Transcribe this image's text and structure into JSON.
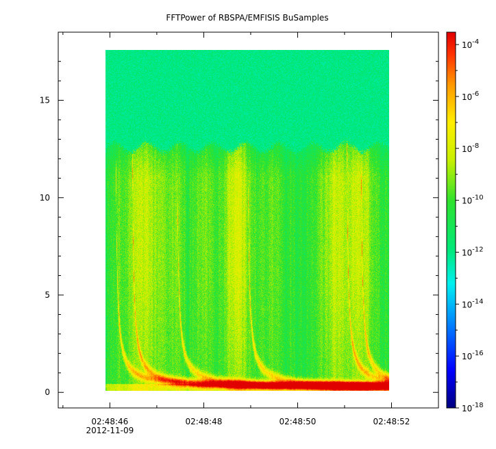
{
  "chart_data": {
    "type": "heatmap",
    "title": "FFTPower of RBSPA/EMFISIS  BuSamples",
    "x_ticks": [
      {
        "time": "02:48:46",
        "date": "2012-11-09"
      },
      {
        "time": "02:48:48",
        "date": ""
      },
      {
        "time": "02:48:50",
        "date": ""
      },
      {
        "time": "02:48:52",
        "date": ""
      }
    ],
    "xlim": [
      "02:48:44.9",
      "02:48:53.0"
    ],
    "data_x_range": [
      "02:48:46.0",
      "02:48:52.0"
    ],
    "ylim": [
      -0.8,
      18.5
    ],
    "y_ticks": [
      0,
      5,
      10,
      15
    ],
    "data_y_range": [
      0,
      17.5
    ],
    "colorbar": {
      "scale": "log",
      "range": [
        1e-18,
        0.0003
      ],
      "colormap": "rainbow",
      "tick_labels": [
        {
          "base": "10",
          "exp": "-4"
        },
        {
          "base": "10",
          "exp": "-6"
        },
        {
          "base": "10",
          "exp": "-8"
        },
        {
          "base": "10",
          "exp": "-10"
        },
        {
          "base": "10",
          "exp": "-12"
        },
        {
          "base": "10",
          "exp": "-14"
        },
        {
          "base": "10",
          "exp": "-16"
        },
        {
          "base": "10",
          "exp": "-18"
        }
      ]
    },
    "spectral_features": {
      "background_power_above_cutoff": 1e-12,
      "cutoff_frequency": 12.5,
      "chorus_element_times_s": [
        0.2,
        0.55,
        1.5,
        3.0,
        5.1,
        5.4
      ]
    }
  }
}
